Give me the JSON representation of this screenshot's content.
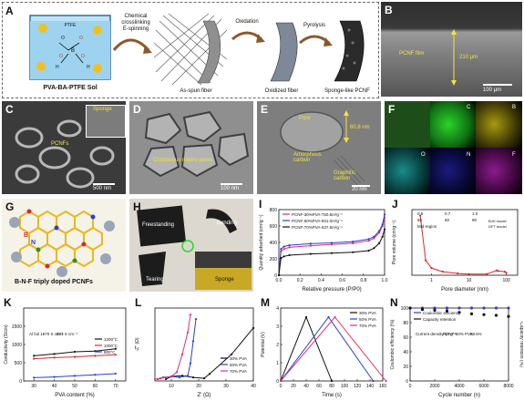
{
  "panelA": {
    "label": "A",
    "sol_label": "PVA-BA-PTFE Sol",
    "arrow1": [
      "Chemical",
      "crosslinking",
      "E-spinning"
    ],
    "stage1": "As-spun fiber",
    "stage2_arrow": "Oxidation",
    "stage2": "Oxidized fiber",
    "stage3_arrow": "Pyrolysis",
    "stage3": "Sponge-like PCNF",
    "chem_ptfe": "PTFE",
    "chem_o": [
      "O",
      "O",
      "O",
      "O"
    ],
    "chem_b": "B",
    "chem_h": [
      "H",
      "H"
    ]
  },
  "panelB": {
    "label": "B",
    "film": "PCNF film",
    "thickness": "210 μm",
    "scale": "100 μm"
  },
  "panelC": {
    "label": "C",
    "inset": "Sponge",
    "pcnfs": "PCNFs",
    "scale": "500 nm"
  },
  "panelD": {
    "label": "D",
    "caption": "Continuous macro pores",
    "scale": "100 nm"
  },
  "panelE": {
    "label": "E",
    "pore": "Pore",
    "amorph": "Amorphous carbon",
    "graph": "Graphitic carbon",
    "size": "60.8 nm",
    "scale": "20 nm"
  },
  "panelF": {
    "label": "F",
    "elements": [
      "C",
      "B",
      "O",
      "N",
      "F"
    ]
  },
  "panelG": {
    "label": "G",
    "caption": "B-N-F triply doped PCNFs",
    "atoms": [
      "B",
      "N"
    ]
  },
  "panelH": {
    "label": "H",
    "free": "Freestanding",
    "bend": "Bending",
    "tear": "Tearing",
    "sponge": "Sponge"
  },
  "chart_data": [
    {
      "panel": "I",
      "type": "line",
      "title": "",
      "xlabel": "Relative pressure (P/P0)",
      "ylabel": "Quantity adsorbed (cm³g⁻¹)",
      "xlim": [
        0,
        1.0
      ],
      "ylim": [
        0,
        800
      ],
      "xticks": [
        "0.0",
        "0.2",
        "0.4",
        "0.6",
        "0.8",
        "1.0"
      ],
      "yticks": [
        "0",
        "200",
        "400",
        "600",
        "800"
      ],
      "legend_position": "top-left",
      "series": [
        {
          "name": "PCNF-30%PVA-750.6m²g⁻¹",
          "color": "#e0306e",
          "x": [
            0,
            0.02,
            0.05,
            0.1,
            0.3,
            0.5,
            0.7,
            0.85,
            0.9,
            0.95,
            0.98,
            1.0
          ],
          "values": [
            0,
            290,
            320,
            340,
            360,
            375,
            390,
            420,
            450,
            520,
            600,
            700
          ]
        },
        {
          "name": "PCNF-50%PVA-931.0m²g⁻¹",
          "color": "#2b3fd0",
          "x": [
            0,
            0.02,
            0.05,
            0.1,
            0.3,
            0.5,
            0.7,
            0.85,
            0.9,
            0.95,
            0.98,
            1.0
          ],
          "values": [
            0,
            320,
            350,
            365,
            385,
            395,
            410,
            440,
            470,
            540,
            620,
            740
          ]
        },
        {
          "name": "PCNF-70%PVA-537.5m²g⁻¹",
          "color": "#111111",
          "x": [
            0,
            0.02,
            0.05,
            0.1,
            0.3,
            0.5,
            0.7,
            0.85,
            0.9,
            0.95,
            0.98,
            1.0
          ],
          "values": [
            0,
            210,
            230,
            245,
            260,
            270,
            280,
            300,
            330,
            390,
            470,
            560
          ]
        }
      ]
    },
    {
      "panel": "J",
      "type": "line",
      "title": "",
      "xlabel": "Pore diameter (nm)",
      "ylabel": "Pore volume (cm³g⁻¹)",
      "xscale": "log",
      "xticks": [
        "1",
        "10",
        "100"
      ],
      "annotations": [
        "0.5",
        "0.7",
        "1.0",
        "55",
        "60",
        "90",
        "Mid-region"
      ],
      "series": [
        {
          "name": "PCNF-50%PVA",
          "color": "#d8292e",
          "x": [
            0.5,
            0.7,
            1.0,
            2,
            5,
            10,
            30,
            55,
            60,
            90,
            100
          ],
          "values": [
            1.0,
            0.25,
            0.12,
            0.06,
            0.03,
            0.02,
            0.02,
            0.08,
            0.07,
            0.06,
            0.04
          ]
        }
      ],
      "inset": {
        "legend": [
          "BJH model",
          "DFT model"
        ]
      }
    },
    {
      "panel": "K",
      "type": "line",
      "title": "",
      "xlabel": "PVA content (%)",
      "ylabel": "Conductivity (S/cm)",
      "xlim": [
        25,
        75
      ],
      "ylim": [
        0,
        2000
      ],
      "xticks": [
        "30",
        "40",
        "50",
        "60",
        "70"
      ],
      "yticks": [
        "0",
        "500",
        "1000",
        "1500"
      ],
      "annotations": [
        "Al foil 1870 S cm⁻¹",
        "881 S cm⁻¹"
      ],
      "legend_position": "center-right",
      "series": [
        {
          "name": "1200°C",
          "color": "#111111",
          "x": [
            30,
            40,
            50,
            60,
            70
          ],
          "values": [
            690,
            740,
            800,
            820,
            881
          ]
        },
        {
          "name": "1000°C",
          "color": "#d8292e",
          "x": [
            30,
            40,
            50,
            60,
            70
          ],
          "values": [
            610,
            640,
            660,
            690,
            720
          ]
        },
        {
          "name": "800°C",
          "color": "#2b3fd0",
          "x": [
            30,
            40,
            50,
            60,
            70
          ],
          "values": [
            90,
            110,
            140,
            170,
            200
          ]
        }
      ]
    },
    {
      "panel": "L",
      "type": "line",
      "title": "",
      "xlabel": "Z' (Ω)",
      "ylabel": "-Z'' (Ω)",
      "xticks": [
        "0",
        "10",
        "20",
        "30",
        "40",
        "50"
      ],
      "legend_position": "bottom-right",
      "series": [
        {
          "name": "30% PVA",
          "color": "#111111",
          "x": [
            8,
            10,
            14,
            18,
            22,
            24,
            32,
            40
          ],
          "values": [
            2,
            5,
            6,
            4,
            3,
            8,
            30,
            60
          ]
        },
        {
          "name": "50% PVA",
          "color": "#2b3fd0",
          "x": [
            5,
            7,
            10,
            13,
            16,
            17,
            18,
            19
          ],
          "values": [
            2,
            4,
            5,
            4,
            6,
            20,
            45,
            70
          ]
        },
        {
          "name": "70% PVA",
          "color": "#e0306e",
          "x": [
            4,
            6,
            8,
            10,
            12,
            14,
            16,
            17
          ],
          "values": [
            2,
            3,
            4,
            5,
            10,
            30,
            55,
            75
          ]
        }
      ]
    },
    {
      "panel": "M",
      "type": "line",
      "title": "",
      "xlabel": "Time (s)",
      "ylabel": "Potential (V)",
      "xlim": [
        0,
        160
      ],
      "ylim": [
        0,
        4
      ],
      "xticks": [
        "0",
        "20",
        "40",
        "60",
        "80",
        "100",
        "120",
        "140",
        "160"
      ],
      "yticks": [
        "0",
        "1",
        "2",
        "3",
        "4"
      ],
      "legend_position": "top-right",
      "series": [
        {
          "name": "30% PVA",
          "color": "#111111",
          "x": [
            0,
            40,
            80
          ],
          "values": [
            0,
            3.5,
            0
          ]
        },
        {
          "name": "50% PVA",
          "color": "#2b3fd0",
          "x": [
            0,
            75,
            145
          ],
          "values": [
            0,
            3.5,
            0
          ]
        },
        {
          "name": "70% PVA",
          "color": "#e0306e",
          "x": [
            0,
            85,
            165
          ],
          "values": [
            0,
            3.5,
            0
          ]
        }
      ]
    },
    {
      "panel": "N",
      "type": "scatter",
      "title": "",
      "xlabel": "Cycle number (n)",
      "ylabel": "Coulombic efficiency (%)",
      "y2label": "Capacity retention (%)",
      "xlim": [
        0,
        8000
      ],
      "ylim": [
        0,
        100
      ],
      "xticks": [
        "0",
        "2000",
        "4000",
        "6000",
        "8000"
      ],
      "yticks": [
        "0",
        "20",
        "40",
        "60",
        "80",
        "100"
      ],
      "annotations": [
        "Current density:1A g⁻¹",
        "PCNF-50% PVA",
        "88.5%"
      ],
      "series": [
        {
          "name": "Coulombic efficiency",
          "color": "#2b3fd0",
          "x": [
            0,
            1000,
            2000,
            3000,
            4000,
            5000,
            6000,
            7000,
            8000
          ],
          "values": [
            100,
            100,
            100,
            100,
            100,
            100,
            100,
            100,
            100
          ]
        },
        {
          "name": "Capacity retention",
          "color": "#111111",
          "x": [
            0,
            1000,
            2000,
            3000,
            4000,
            5000,
            6000,
            7000,
            8000
          ],
          "values": [
            100,
            98,
            97,
            96,
            94,
            92,
            91,
            90,
            88.5
          ]
        }
      ]
    }
  ]
}
